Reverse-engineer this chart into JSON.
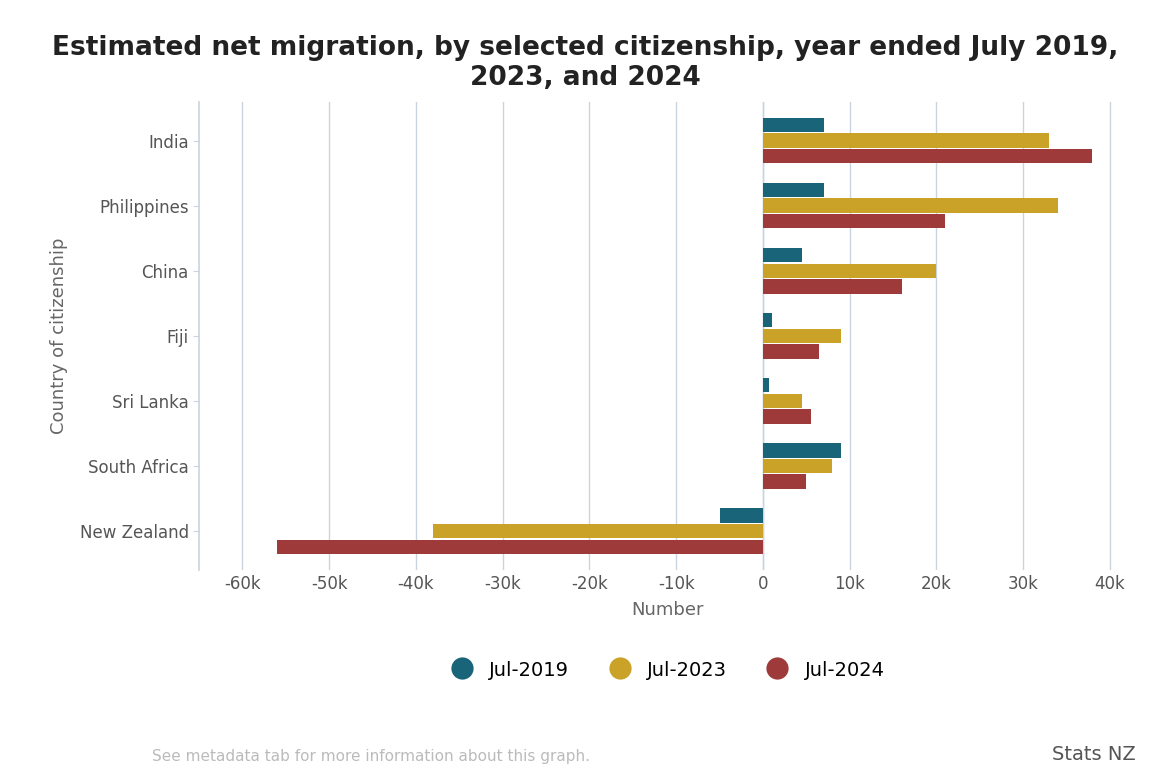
{
  "title": "Estimated net migration, by selected citizenship, year ended July 2019,\n2023, and 2024",
  "xlabel": "Number",
  "ylabel": "Country of citizenship",
  "footer_left": "See metadata tab for more information about this graph.",
  "footer_right": "Stats NZ",
  "categories": [
    "India",
    "Philippines",
    "China",
    "Fiji",
    "Sri Lanka",
    "South Africa",
    "New Zealand"
  ],
  "series": {
    "Jul-2019": [
      7000,
      7000,
      4500,
      1000,
      700,
      9000,
      -5000
    ],
    "Jul-2023": [
      33000,
      34000,
      20000,
      9000,
      4500,
      8000,
      -38000
    ],
    "Jul-2024": [
      38000,
      21000,
      16000,
      6500,
      5500,
      5000,
      -56000
    ]
  },
  "colors": {
    "Jul-2019": "#1a6479",
    "Jul-2023": "#c9a227",
    "Jul-2024": "#9e3a3a"
  },
  "xlim": [
    -65000,
    43000
  ],
  "xticks": [
    -60000,
    -50000,
    -40000,
    -30000,
    -20000,
    -10000,
    0,
    10000,
    20000,
    30000,
    40000
  ],
  "xtick_labels": [
    "-60k",
    "-50k",
    "-40k",
    "-30k",
    "-20k",
    "-10k",
    "0",
    "10k",
    "20k",
    "30k",
    "40k"
  ],
  "background_color": "#ffffff",
  "grid_color": "#c8d4e0",
  "bar_height": 0.24,
  "title_fontsize": 19,
  "axis_label_fontsize": 13,
  "tick_fontsize": 12,
  "legend_fontsize": 14,
  "footer_fontsize": 11
}
